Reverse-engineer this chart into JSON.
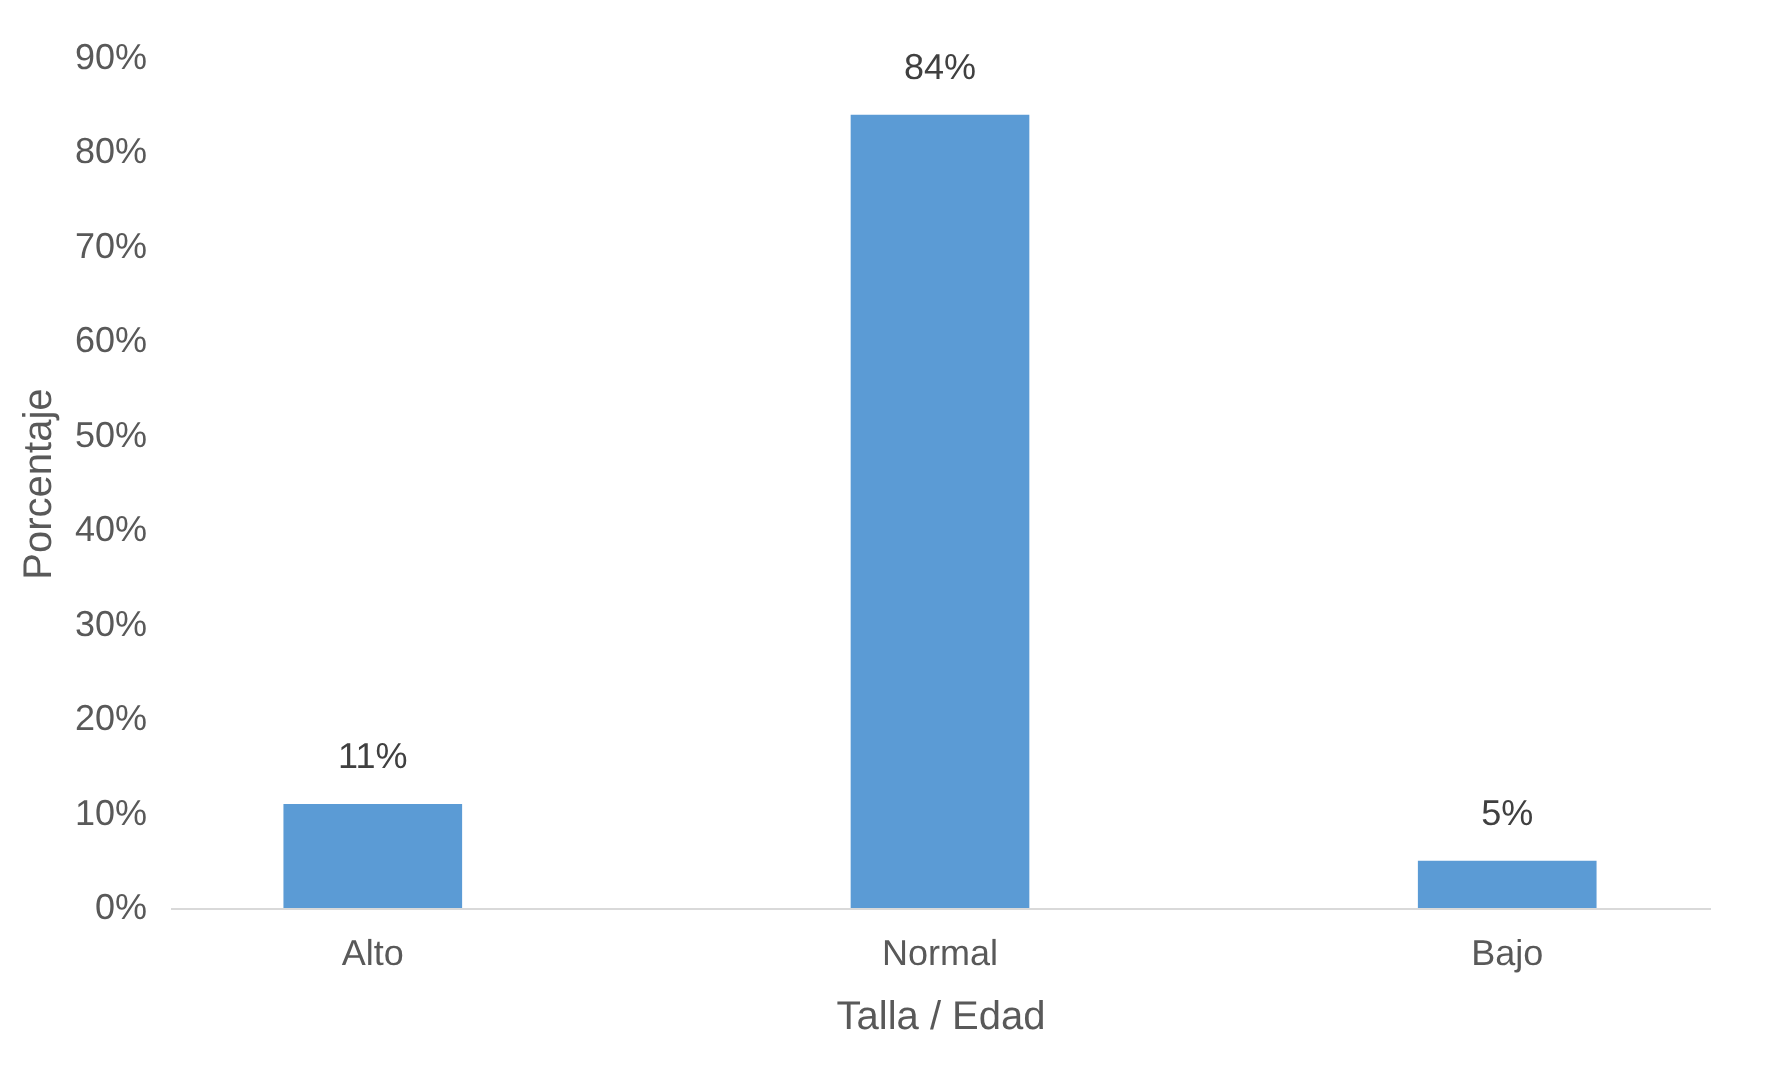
{
  "chart_data": {
    "type": "bar",
    "xlabel": "Talla / Edad",
    "ylabel": "Porcentaje",
    "categories": [
      "Alto",
      "Normal",
      "Bajo"
    ],
    "values": [
      11,
      84,
      5
    ],
    "value_labels": [
      "11%",
      "84%",
      "5%"
    ],
    "color": "#5b9bd5",
    "ylim": [
      0,
      90
    ],
    "yticks": [
      {
        "value": 0,
        "label": "0%"
      },
      {
        "value": 10,
        "label": "10%"
      },
      {
        "value": 20,
        "label": "20%"
      },
      {
        "value": 30,
        "label": "30%"
      },
      {
        "value": 40,
        "label": "40%"
      },
      {
        "value": 50,
        "label": "50%"
      },
      {
        "value": 60,
        "label": "60%"
      },
      {
        "value": 70,
        "label": "70%"
      },
      {
        "value": 80,
        "label": "80%"
      },
      {
        "value": 90,
        "label": "90%"
      }
    ],
    "grid": false
  }
}
